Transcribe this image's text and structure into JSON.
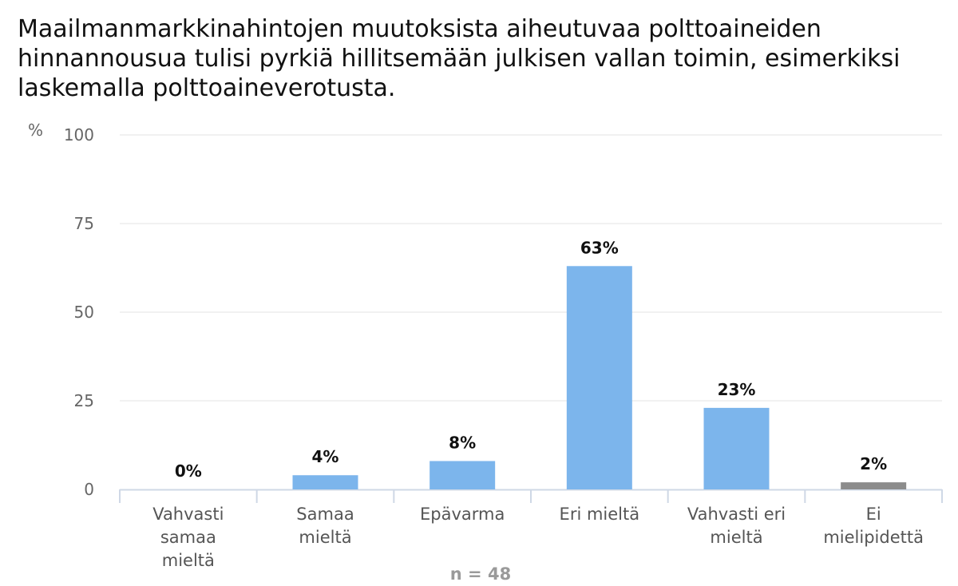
{
  "chart_data": {
    "type": "bar",
    "title": "Maailmanmarkkinahintojen muutoksista aiheutuvaa polttoaineiden hinnannousua tulisi pyrkiä hillitsemään julkisen vallan toimin, esimerkiksi laskemalla polttoaineverotusta.",
    "ylabel": "%",
    "ylim": [
      0,
      100
    ],
    "yticks": [
      0,
      25,
      50,
      75,
      100
    ],
    "grid": true,
    "categories": [
      [
        "Vahvasti",
        "samaa",
        "mieltä"
      ],
      [
        "Samaa",
        "mieltä"
      ],
      [
        "Epävarma"
      ],
      [
        "Eri mieltä"
      ],
      [
        "Vahvasti eri",
        "mieltä"
      ],
      [
        "Ei",
        "mielipidettä"
      ]
    ],
    "values": [
      0,
      4,
      8,
      63,
      23,
      2
    ],
    "data_labels": [
      "0%",
      "4%",
      "8%",
      "63%",
      "23%",
      "2%"
    ],
    "colors": [
      "#7cb5ec",
      "#7cb5ec",
      "#7cb5ec",
      "#7cb5ec",
      "#7cb5ec",
      "#8c8c8c"
    ],
    "footer": "n = 48"
  }
}
